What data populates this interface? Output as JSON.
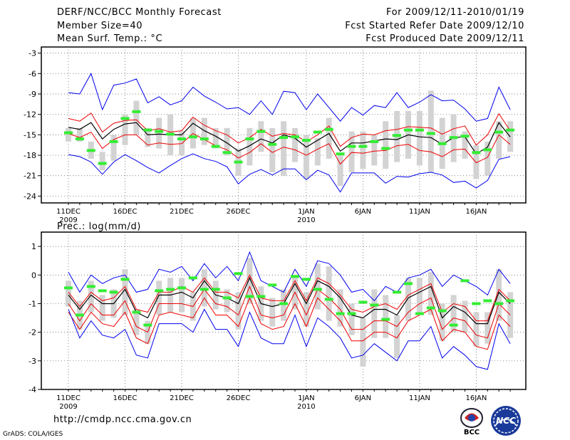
{
  "header": {
    "title": "DERF/NCC/BCC Monthly Forecast",
    "member_size": "Member Size=40",
    "variable": "Mean Surf. Temp.: °C",
    "period": "For 2009/12/11-2010/01/19",
    "fcst_started": "Fcst Started Refer Date 2009/12/10",
    "fcst_produced": "Fcst Produced Date 2009/12/11"
  },
  "footer": {
    "url": "http://cmdp.ncc.cma.gov.cn",
    "credit": "GrADS: COLA/IGES"
  },
  "logos": {
    "bcc": "BCC",
    "ncc": "NCC"
  },
  "colors": {
    "envelope": "#0000ee",
    "quartile": "#ee0000",
    "mean": "#000000",
    "spread_bar": "#d3d3d3",
    "observed": "#33ee33"
  },
  "chart_data": [
    {
      "type": "line",
      "name": "temperature-panel",
      "title": "Mean Surf. Temp.: °C",
      "ylabel": "°C",
      "ylim": [
        -25,
        -2
      ],
      "yticks": [
        -3,
        -6,
        -9,
        -12,
        -15,
        -18,
        -21,
        -24
      ],
      "x_count": 40,
      "xticks": [
        {
          "index": 0,
          "label": "11DEC",
          "sublabel": "2009"
        },
        {
          "index": 5,
          "label": "16DEC",
          "sublabel": ""
        },
        {
          "index": 10,
          "label": "21DEC",
          "sublabel": ""
        },
        {
          "index": 15,
          "label": "26DEC",
          "sublabel": ""
        },
        {
          "index": 21,
          "label": "1JAN",
          "sublabel": "2010"
        },
        {
          "index": 26,
          "label": "6JAN",
          "sublabel": ""
        },
        {
          "index": 31,
          "label": "11JAN",
          "sublabel": ""
        },
        {
          "index": 36,
          "label": "16JAN",
          "sublabel": ""
        }
      ],
      "series": [
        {
          "name": "max",
          "values": [
            -8.8,
            -9.0,
            -6.0,
            -11.3,
            -7.7,
            -7.4,
            -6.8,
            -10.3,
            -9.4,
            -10.6,
            -10.0,
            -8.0,
            -9.3,
            -10.2,
            -11.2,
            -11.0,
            -12.0,
            -10.0,
            -12.0,
            -8.6,
            -8.8,
            -11.3,
            -9.0,
            -11.0,
            -13.0,
            -11.0,
            -12.1,
            -10.7,
            -11.0,
            -8.8,
            -11.0,
            -10.2,
            -9.1,
            -10.0,
            -9.9,
            -11.2,
            -13.0,
            -12.6,
            -8.0,
            -11.3
          ]
        },
        {
          "name": "q75",
          "values": [
            -12.6,
            -13.0,
            -11.8,
            -14.6,
            -13.3,
            -12.9,
            -12.8,
            -14.4,
            -14.1,
            -14.6,
            -14.4,
            -12.4,
            -13.6,
            -14.4,
            -15.0,
            -16.2,
            -15.4,
            -14.2,
            -15.2,
            -14.8,
            -15.0,
            -16.0,
            -15.0,
            -13.7,
            -16.7,
            -15.4,
            -14.9,
            -15.0,
            -14.4,
            -14.2,
            -13.8,
            -13.9,
            -14.0,
            -14.9,
            -14.1,
            -13.7,
            -16.5,
            -15.0,
            -11.9,
            -14.4
          ]
        },
        {
          "name": "mean",
          "values": [
            -13.9,
            -14.2,
            -13.2,
            -15.6,
            -14.2,
            -13.4,
            -13.2,
            -15.0,
            -14.9,
            -15.0,
            -15.0,
            -13.3,
            -14.4,
            -15.2,
            -16.2,
            -17.4,
            -16.6,
            -15.6,
            -16.2,
            -15.0,
            -15.5,
            -16.8,
            -15.8,
            -14.8,
            -17.4,
            -16.2,
            -16.2,
            -15.9,
            -15.6,
            -15.7,
            -15.0,
            -15.3,
            -15.4,
            -16.4,
            -15.4,
            -15.3,
            -17.8,
            -16.8,
            -13.2,
            -15.3
          ]
        },
        {
          "name": "q25",
          "values": [
            -14.8,
            -15.4,
            -14.6,
            -17.0,
            -15.7,
            -15.0,
            -15.0,
            -16.5,
            -16.2,
            -16.4,
            -16.3,
            -14.8,
            -15.7,
            -16.6,
            -17.2,
            -18.4,
            -17.6,
            -16.3,
            -17.6,
            -16.8,
            -17.2,
            -18.0,
            -17.1,
            -16.3,
            -19.3,
            -17.6,
            -17.7,
            -17.4,
            -17.3,
            -16.6,
            -16.4,
            -17.3,
            -17.5,
            -18.2,
            -17.2,
            -17.1,
            -19.1,
            -18.3,
            -15.0,
            -16.4
          ]
        },
        {
          "name": "min",
          "values": [
            -17.9,
            -18.2,
            -19.0,
            -20.8,
            -19.0,
            -17.9,
            -18.8,
            -19.8,
            -20.6,
            -19.5,
            -18.5,
            -17.8,
            -18.5,
            -18.9,
            -19.7,
            -22.2,
            -20.8,
            -20.1,
            -20.9,
            -20.0,
            -20.0,
            -21.6,
            -20.2,
            -20.9,
            -23.4,
            -20.6,
            -20.6,
            -20.6,
            -22.1,
            -21.1,
            -21.2,
            -20.7,
            -20.5,
            -20.9,
            -22.0,
            -21.8,
            -22.8,
            -21.7,
            -18.6,
            -18.2
          ]
        }
      ],
      "spread_bars": [
        [
          -16.0,
          -14.0
        ],
        [
          -16.0,
          -14.0
        ],
        [
          -18.5,
          -16.0
        ],
        [
          -20.2,
          -17.5
        ],
        [
          -18.8,
          -15.0
        ],
        [
          -16.5,
          -12.0
        ],
        [
          -15.0,
          -10.0
        ],
        [
          -16.8,
          -14.0
        ],
        [
          -17.0,
          -12.5
        ],
        [
          -18.0,
          -12.0
        ],
        [
          -18.0,
          -14.5
        ],
        [
          -17.0,
          -12.5
        ],
        [
          -16.5,
          -12.5
        ],
        [
          -17.0,
          -14.0
        ],
        [
          -18.0,
          -14.0
        ],
        [
          -21.0,
          -17.0
        ],
        [
          -19.5,
          -14.0
        ],
        [
          -17.5,
          -13.0
        ],
        [
          -20.5,
          -14.0
        ],
        [
          -21.0,
          -13.0
        ],
        [
          -19.0,
          -14.0
        ],
        [
          -21.5,
          -15.0
        ],
        [
          -19.5,
          -15.5
        ],
        [
          -18.5,
          -12.5
        ],
        [
          -22.5,
          -18.0
        ],
        [
          -20.5,
          -14.5
        ],
        [
          -20.0,
          -14.5
        ],
        [
          -19.5,
          -15.0
        ],
        [
          -20.0,
          -13.0
        ],
        [
          -19.0,
          -11.5
        ],
        [
          -18.5,
          -11.5
        ],
        [
          -19.5,
          -11.5
        ],
        [
          -20.5,
          -8.5
        ],
        [
          -20.0,
          -12.5
        ],
        [
          -19.0,
          -12.0
        ],
        [
          -18.5,
          -14.5
        ],
        [
          -21.5,
          -16.5
        ],
        [
          -21.0,
          -16.0
        ],
        [
          -18.5,
          -13.0
        ],
        [
          -17.5,
          -13.0
        ]
      ],
      "observed": [
        -14.7,
        -15.6,
        -17.3,
        -19.2,
        -16.0,
        -12.6,
        -11.6,
        -14.3,
        -14.5,
        -14.9,
        -15.6,
        -15.3,
        -15.6,
        -16.7,
        -17.6,
        -19.0,
        -15.6,
        -14.5,
        -16.4,
        -15.4,
        -15.3,
        -15.8,
        -14.6,
        -14.2,
        -17.8,
        -16.7,
        -16.7,
        -16.0,
        -17.0,
        -15.1,
        -14.3,
        -14.3,
        -14.8,
        -16.3,
        -15.4,
        -15.2,
        -17.6,
        -17.2,
        -14.6,
        -14.3
      ]
    },
    {
      "type": "line",
      "name": "precipitation-panel",
      "title": "Prec.: log(mm/d)",
      "ylabel": "log(mm/d)",
      "ylim": [
        -4,
        1.5
      ],
      "yticks": [
        1,
        0,
        -1,
        -2,
        -3,
        -4
      ],
      "x_count": 40,
      "xticks": [
        {
          "index": 0,
          "label": "11DEC",
          "sublabel": "2009"
        },
        {
          "index": 5,
          "label": "16DEC",
          "sublabel": ""
        },
        {
          "index": 10,
          "label": "21DEC",
          "sublabel": ""
        },
        {
          "index": 15,
          "label": "26DEC",
          "sublabel": ""
        },
        {
          "index": 21,
          "label": "1JAN",
          "sublabel": "2010"
        },
        {
          "index": 26,
          "label": "6JAN",
          "sublabel": ""
        },
        {
          "index": 31,
          "label": "11JAN",
          "sublabel": ""
        },
        {
          "index": 36,
          "label": "16JAN",
          "sublabel": ""
        }
      ],
      "series": [
        {
          "name": "max",
          "values": [
            0.1,
            -0.6,
            0.0,
            -0.3,
            -0.1,
            0.0,
            -0.6,
            -0.5,
            0.2,
            0.1,
            0.3,
            -0.2,
            0.4,
            -0.1,
            0.3,
            -0.2,
            0.8,
            -0.2,
            -0.4,
            -0.6,
            0.2,
            -0.4,
            0.5,
            0.4,
            0.0,
            -0.6,
            -0.5,
            -0.9,
            -0.4,
            -0.6,
            -0.1,
            0.0,
            0.2,
            -0.4,
            0.0,
            -0.2,
            -0.4,
            -0.7,
            0.2,
            -0.3
          ]
        },
        {
          "name": "q75",
          "values": [
            -0.6,
            -1.1,
            -0.6,
            -0.9,
            -0.8,
            -0.4,
            -1.2,
            -1.3,
            -0.6,
            -0.6,
            -0.4,
            -0.6,
            -0.1,
            -0.6,
            -0.6,
            -0.8,
            0.0,
            -0.8,
            -0.9,
            -0.9,
            -0.2,
            -0.9,
            -0.1,
            -0.3,
            -0.7,
            -1.2,
            -1.3,
            -1.1,
            -1.0,
            -1.2,
            -0.7,
            -0.5,
            -0.3,
            -1.3,
            -1.0,
            -1.1,
            -1.6,
            -1.6,
            -0.5,
            -0.9
          ]
        },
        {
          "name": "mean",
          "values": [
            -0.7,
            -1.2,
            -0.7,
            -1.0,
            -1.0,
            -0.5,
            -1.3,
            -1.5,
            -0.7,
            -0.7,
            -0.6,
            -0.8,
            -0.2,
            -0.7,
            -0.8,
            -1.0,
            -0.1,
            -1.0,
            -1.1,
            -1.0,
            -0.3,
            -1.0,
            -0.2,
            -0.4,
            -0.8,
            -1.4,
            -1.5,
            -1.2,
            -1.2,
            -1.4,
            -0.8,
            -0.6,
            -0.4,
            -1.5,
            -1.1,
            -1.3,
            -1.7,
            -1.7,
            -0.6,
            -1.0
          ]
        },
        {
          "name": "q25",
          "values": [
            -1.0,
            -1.6,
            -1.0,
            -1.4,
            -1.4,
            -0.9,
            -1.8,
            -2.0,
            -1.0,
            -1.0,
            -1.0,
            -1.1,
            -0.5,
            -1.0,
            -1.1,
            -1.4,
            -0.4,
            -1.4,
            -1.5,
            -1.4,
            -0.6,
            -1.4,
            -0.5,
            -0.8,
            -1.2,
            -1.9,
            -1.9,
            -1.6,
            -1.6,
            -1.8,
            -1.3,
            -1.0,
            -0.8,
            -1.9,
            -1.5,
            -1.6,
            -2.1,
            -2.2,
            -1.0,
            -1.4
          ]
        },
        {
          "name": "q10",
          "values": [
            -1.3,
            -1.9,
            -1.3,
            -1.7,
            -1.8,
            -1.3,
            -2.2,
            -2.4,
            -1.4,
            -1.3,
            -1.4,
            -1.5,
            -0.8,
            -1.4,
            -1.4,
            -1.8,
            -0.8,
            -1.7,
            -1.9,
            -1.8,
            -1.0,
            -1.8,
            -0.8,
            -1.2,
            -1.6,
            -2.3,
            -2.3,
            -2.0,
            -2.0,
            -2.2,
            -1.6,
            -1.4,
            -1.2,
            -2.3,
            -1.9,
            -2.0,
            -2.5,
            -2.6,
            -1.4,
            -1.8
          ]
        },
        {
          "name": "min",
          "values": [
            -1.2,
            -2.2,
            -1.6,
            -2.1,
            -2.2,
            -1.9,
            -2.8,
            -2.9,
            -1.7,
            -1.7,
            -1.7,
            -2.0,
            -1.2,
            -1.9,
            -1.9,
            -2.5,
            -1.3,
            -2.2,
            -2.4,
            -2.4,
            -1.4,
            -2.5,
            -1.5,
            -1.8,
            -2.2,
            -2.9,
            -2.8,
            -2.4,
            -2.7,
            -3.0,
            -2.3,
            -2.3,
            -1.8,
            -2.9,
            -2.5,
            -2.8,
            -3.2,
            -3.3,
            -1.7,
            -2.4
          ]
        }
      ],
      "spread_bars": [
        [
          -1.1,
          -0.2
        ],
        [
          -1.9,
          -0.9
        ],
        [
          -1.3,
          -0.2
        ],
        [
          -1.6,
          -0.7
        ],
        [
          -1.5,
          -0.5
        ],
        [
          -1.4,
          0.2
        ],
        [
          -2.1,
          -1.2
        ],
        [
          -2.4,
          -1.6
        ],
        [
          -1.4,
          -0.2
        ],
        [
          -1.3,
          -0.1
        ],
        [
          -1.3,
          -0.1
        ],
        [
          -1.6,
          -0.6
        ],
        [
          -1.1,
          0.2
        ],
        [
          -1.2,
          -0.2
        ],
        [
          -1.3,
          -0.5
        ],
        [
          -1.9,
          -0.6
        ],
        [
          -1.0,
          0.6
        ],
        [
          -1.6,
          -0.4
        ],
        [
          -1.8,
          -0.8
        ],
        [
          -1.6,
          -0.5
        ],
        [
          -1.2,
          0.0
        ],
        [
          -1.8,
          -0.6
        ],
        [
          -1.2,
          0.4
        ],
        [
          -1.6,
          0.3
        ],
        [
          -1.8,
          -0.5
        ],
        [
          -2.1,
          -1.0
        ],
        [
          -3.2,
          -1.5
        ],
        [
          -2.2,
          -0.5
        ],
        [
          -2.2,
          -0.7
        ],
        [
          -2.9,
          -1.4
        ],
        [
          -1.6,
          -0.1
        ],
        [
          -1.3,
          -0.1
        ],
        [
          -1.4,
          0.1
        ],
        [
          -2.3,
          -1.0
        ],
        [
          -2.0,
          -0.7
        ],
        [
          -2.0,
          -0.9
        ],
        [
          -2.5,
          -1.3
        ],
        [
          -2.4,
          -1.3
        ],
        [
          -1.6,
          0.2
        ],
        [
          -2.2,
          -0.6
        ]
      ],
      "observed": [
        -0.45,
        -1.4,
        -0.4,
        -0.55,
        -0.6,
        -0.15,
        -1.3,
        -1.75,
        -0.55,
        -0.5,
        -0.45,
        -0.1,
        -0.5,
        -0.5,
        -0.8,
        0.05,
        -0.75,
        -0.75,
        -0.35,
        -1.0,
        -0.05,
        -0.15,
        -0.5,
        -0.85,
        -1.35,
        -1.35,
        -0.95,
        -1.05,
        -1.55,
        -0.6,
        -0.3,
        -1.35,
        -1.15,
        -1.25,
        -1.75,
        -0.2,
        -1.0,
        -0.9,
        -1.0,
        -0.9
      ]
    }
  ]
}
